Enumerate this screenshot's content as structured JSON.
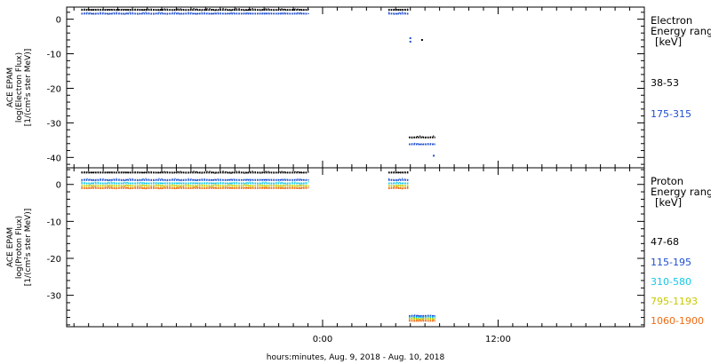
{
  "xlabel": "hours:minutes, Aug.  9, 2018 - Aug. 10, 2018",
  "chart_data": [
    {
      "type": "scatter",
      "ylabel": [
        "ACE EPAM",
        "log(Electron Flux)",
        "[1/(cm²s ster MeV)]"
      ],
      "ylim": [
        -43,
        3.5
      ],
      "yticks": [
        0,
        -10,
        -20,
        -30,
        -40
      ],
      "xlim": [
        -17.5,
        22
      ],
      "xticks": [
        {
          "x": 0,
          "label": "0:00"
        },
        {
          "x": 12,
          "label": "12:00"
        }
      ],
      "legend": {
        "placement": "right",
        "heading": [
          "Electron",
          "Energy range",
          "[keV]"
        ]
      },
      "series": [
        {
          "name": "38-53",
          "color": "#000000",
          "segments": [
            {
              "x": [
                -16.5,
                -1.0
              ],
              "y": 2.7
            },
            {
              "x": [
                4.5,
                5.9
              ],
              "y": 2.7
            },
            {
              "x": [
                5.9,
                7.7
              ],
              "y": -34.2
            }
          ],
          "points": [
            {
              "x": 6.8,
              "y": -6.0
            }
          ]
        },
        {
          "name": "175-315",
          "color": "#1f4fd0",
          "segments": [
            {
              "x": [
                -16.5,
                -1.0
              ],
              "y": 1.6
            },
            {
              "x": [
                4.5,
                5.9
              ],
              "y": 1.6
            },
            {
              "x": [
                5.9,
                7.7
              ],
              "y": -36.2
            }
          ],
          "points": [
            {
              "x": 6.0,
              "y": -5.5
            },
            {
              "x": 6.0,
              "y": -6.5
            },
            {
              "x": 7.6,
              "y": -39.5
            }
          ]
        }
      ]
    },
    {
      "type": "scatter",
      "ylabel": [
        "ACE EPAM",
        "log(Proton Flux)",
        "[1/(cm²s ster MeV)]"
      ],
      "ylim": [
        -38.5,
        4.5
      ],
      "yticks": [
        0,
        -10,
        -20,
        -30
      ],
      "xlim": [
        -17.5,
        22
      ],
      "xticks": [
        {
          "x": 0,
          "label": "0:00"
        },
        {
          "x": 12,
          "label": "12:00"
        }
      ],
      "legend": {
        "placement": "right",
        "heading": [
          "Proton",
          "Energy range",
          "[keV]"
        ]
      },
      "series": [
        {
          "name": "47-68",
          "color": "#000000",
          "segments": [
            {
              "x": [
                -16.5,
                -1.0
              ],
              "y": 3.2
            },
            {
              "x": [
                4.5,
                5.9
              ],
              "y": 3.2
            }
          ]
        },
        {
          "name": "115-195",
          "color": "#1f4fd0",
          "segments": [
            {
              "x": [
                -16.5,
                -1.0
              ],
              "y": 1.2
            },
            {
              "x": [
                4.5,
                5.9
              ],
              "y": 1.2
            },
            {
              "x": [
                5.9,
                7.7
              ],
              "y": -35.6
            }
          ]
        },
        {
          "name": "310-580",
          "color": "#17c7e6",
          "segments": [
            {
              "x": [
                -16.5,
                -1.0
              ],
              "y": 0.3
            },
            {
              "x": [
                4.5,
                5.9
              ],
              "y": 0.3
            },
            {
              "x": [
                5.9,
                7.7
              ],
              "y": -36.0
            }
          ]
        },
        {
          "name": "795-1193",
          "color": "#c8c800",
          "segments": [
            {
              "x": [
                -16.5,
                -1.0
              ],
              "y": -0.4
            },
            {
              "x": [
                4.5,
                5.9
              ],
              "y": -0.4
            },
            {
              "x": [
                5.9,
                7.7
              ],
              "y": -36.4
            }
          ]
        },
        {
          "name": "1060-1900",
          "color": "#ee6a10",
          "segments": [
            {
              "x": [
                -16.5,
                -1.0
              ],
              "y": -1.0
            },
            {
              "x": [
                4.5,
                5.9
              ],
              "y": -1.0
            },
            {
              "x": [
                5.9,
                7.7
              ],
              "y": -36.9
            }
          ]
        }
      ]
    }
  ]
}
